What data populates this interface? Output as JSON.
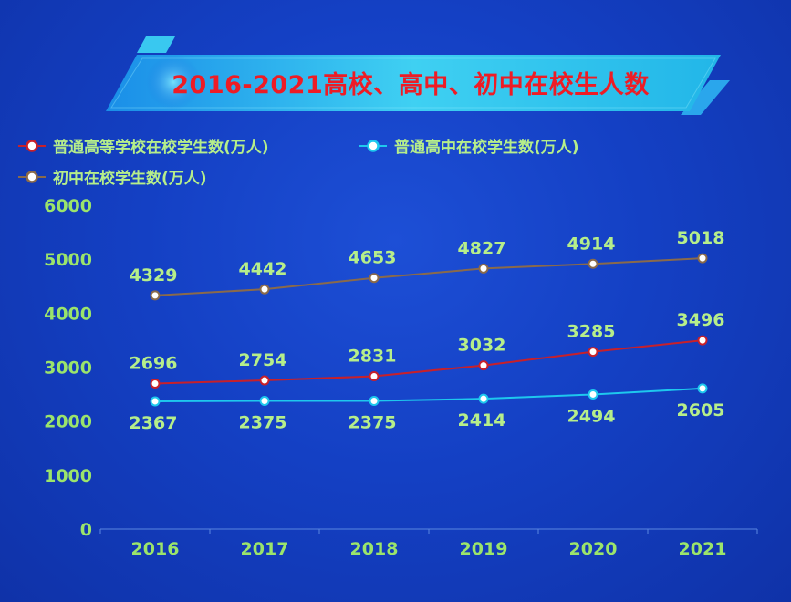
{
  "title": "2016-2021高校、高中、初中在校生人数",
  "colors": {
    "higher_ed": "#c8202a",
    "high_school": "#1ec8ee",
    "junior_high": "#8a6a4a",
    "label_green": "#9be46b"
  },
  "chart_data": {
    "type": "line",
    "title": "2016-2021高校、高中、初中在校生人数",
    "categories": [
      "2016",
      "2017",
      "2018",
      "2019",
      "2020",
      "2021"
    ],
    "yticks": [
      "0",
      "1000",
      "2000",
      "3000",
      "4000",
      "5000",
      "6000"
    ],
    "ylim": [
      0,
      6000
    ],
    "grid": false,
    "legend_position": "top-left",
    "series": [
      {
        "name": "普通高等学校在校学生数(万人)",
        "values": [
          2696,
          2754,
          2831,
          3032,
          3285,
          3496
        ],
        "labels": [
          "2696",
          "2754",
          "2831",
          "3032",
          "3285",
          "3496"
        ],
        "label_side": "above"
      },
      {
        "name": "普通高中在校学生数(万人)",
        "values": [
          2367,
          2375,
          2375,
          2414,
          2494,
          2605
        ],
        "labels": [
          "2367",
          "2375",
          "2375",
          "2414",
          "2494",
          "2605"
        ],
        "label_side": "below"
      },
      {
        "name": "初中在校学生数(万人)",
        "values": [
          4329,
          4442,
          4653,
          4827,
          4914,
          5018
        ],
        "labels": [
          "4329",
          "4442",
          "4653",
          "4827",
          "4914",
          "5018"
        ],
        "label_side": "above"
      }
    ]
  }
}
